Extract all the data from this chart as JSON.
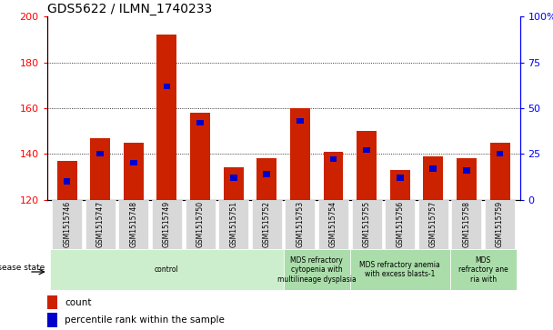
{
  "title": "GDS5622 / ILMN_1740233",
  "samples": [
    "GSM1515746",
    "GSM1515747",
    "GSM1515748",
    "GSM1515749",
    "GSM1515750",
    "GSM1515751",
    "GSM1515752",
    "GSM1515753",
    "GSM1515754",
    "GSM1515755",
    "GSM1515756",
    "GSM1515757",
    "GSM1515758",
    "GSM1515759"
  ],
  "counts": [
    137,
    147,
    145,
    192,
    158,
    134,
    138,
    160,
    141,
    150,
    133,
    139,
    138,
    145
  ],
  "percentiles": [
    10,
    25,
    20,
    62,
    42,
    12,
    14,
    43,
    22,
    27,
    12,
    17,
    16,
    25
  ],
  "bar_color": "#cc2200",
  "pct_color": "#0000cc",
  "ylim_left": [
    120,
    200
  ],
  "ylim_right": [
    0,
    100
  ],
  "yticks_left": [
    120,
    140,
    160,
    180,
    200
  ],
  "yticks_right": [
    0,
    25,
    50,
    75,
    100
  ],
  "group_defs": [
    {
      "start": 0,
      "end": 7,
      "color": "#cceecc",
      "label": "control"
    },
    {
      "start": 7,
      "end": 9,
      "color": "#aaddaa",
      "label": "MDS refractory\ncytopenia with\nmultilineage dysplasia"
    },
    {
      "start": 9,
      "end": 12,
      "color": "#aaddaa",
      "label": "MDS refractory anemia\nwith excess blasts-1"
    },
    {
      "start": 12,
      "end": 14,
      "color": "#aaddaa",
      "label": "MDS\nrefractory ane\nria with"
    }
  ],
  "disease_label": "disease state",
  "legend_count": "count",
  "legend_pct": "percentile rank within the sample",
  "tick_bg": "#d8d8d8"
}
